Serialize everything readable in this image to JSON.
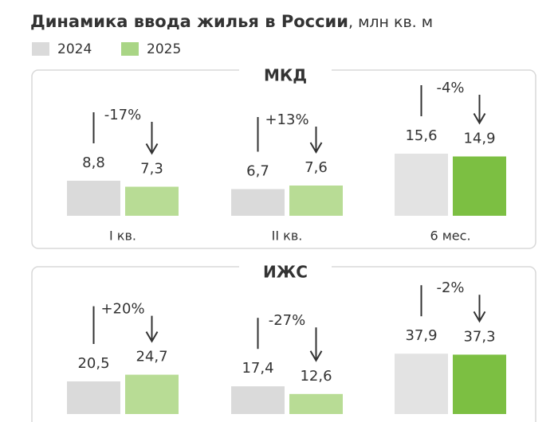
{
  "header": {
    "title": "Динамика ввода жилья в России",
    "unit": ", млн кв. м"
  },
  "chart_data": [
    {
      "type": "bar",
      "title": "МКД",
      "categories": [
        "I кв.",
        "II кв.",
        "6 мес."
      ],
      "series": [
        {
          "name": "2024",
          "color": "#dadada",
          "colors": [
            "#dadada",
            "#dadada",
            "#e3e3e3"
          ],
          "values": [
            8.8,
            6.7,
            15.6
          ],
          "value_labels": [
            "8,8",
            "6,7",
            "15,6"
          ]
        },
        {
          "name": "2025",
          "color": "#a9d585",
          "colors": [
            "#b8dc95",
            "#b8dc95",
            "#7cbf42"
          ],
          "values": [
            7.3,
            7.6,
            14.9
          ],
          "value_labels": [
            "7,3",
            "7,6",
            "14,9"
          ]
        }
      ],
      "changes": [
        {
          "value": -17,
          "label": "-17%"
        },
        {
          "value": 13,
          "label": "+13%"
        },
        {
          "value": -4,
          "label": "-4%"
        }
      ],
      "ylim": [
        0,
        20
      ]
    },
    {
      "type": "bar",
      "title": "ИЖС",
      "series": [
        {
          "color": "#dadada",
          "colors": [
            "#dadada",
            "#dadada",
            "#e3e3e3"
          ],
          "values": [
            20.5,
            17.4,
            37.9
          ],
          "value_labels": [
            "20,5",
            "17,4",
            "37,9"
          ]
        },
        {
          "color": "#a9d585",
          "colors": [
            "#b8dc95",
            "#b8dc95",
            "#7cbf42"
          ],
          "values": [
            24.7,
            12.6,
            37.3
          ],
          "value_labels": [
            "24,7",
            "12,6",
            "37,3"
          ]
        }
      ],
      "changes": [
        {
          "value": 20,
          "label": "+20%"
        },
        {
          "value": -27,
          "label": "-27%"
        },
        {
          "value": -2,
          "label": "-2%"
        }
      ],
      "ylim": [
        0,
        50
      ]
    }
  ]
}
